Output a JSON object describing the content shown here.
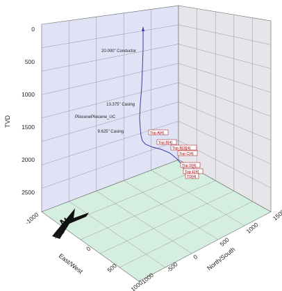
{
  "chart_data": {
    "type": "3d-line",
    "zlabel": "TVD",
    "xlabel": "East/West",
    "ylabel": "North/South",
    "z_ticks": [
      "0",
      "500",
      "1000",
      "1500",
      "2000",
      "2500"
    ],
    "z_range": [
      0,
      2800
    ],
    "x_ticks": [
      "-1000",
      "-500",
      "0",
      "500",
      "1000"
    ],
    "y_ticks": [
      "-1000",
      "-500",
      "0",
      "500",
      "1000",
      "1500"
    ],
    "compass_label": "N",
    "well_name": "PliocenePliocene_UC",
    "casings": [
      {
        "label": "20.000\" Conductor",
        "tvd": 130
      },
      {
        "label": "13.375\" Casing",
        "tvd": 1000
      },
      {
        "label": "9.625\" Casing",
        "tvd": 1600
      }
    ],
    "markers": [
      {
        "label": "Top A[4]"
      },
      {
        "label": "Top B[4]"
      },
      {
        "label": "Top B[3][4]"
      },
      {
        "label": "Top C[4]"
      },
      {
        "label": "Top D[4]"
      },
      {
        "label": "Top E[4]"
      },
      {
        "label": "TD[4]"
      }
    ],
    "grid": true
  }
}
